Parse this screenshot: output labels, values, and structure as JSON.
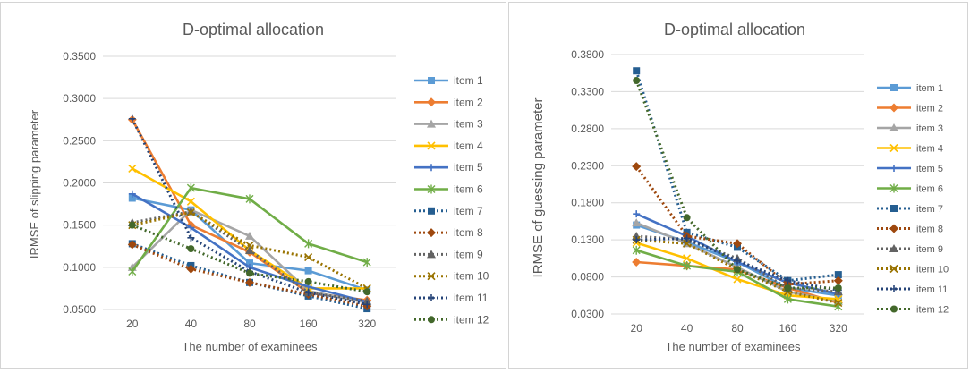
{
  "chart_data": [
    {
      "type": "line",
      "title": "D-optimal allocation",
      "xlabel": "The number of examinees",
      "ylabel": "IRMSE of slipping parameter",
      "categories": [
        "20",
        "40",
        "80",
        "160",
        "320"
      ],
      "ylim": [
        0.05,
        0.35
      ],
      "yticks": [
        "0.0500",
        "0.1000",
        "0.1500",
        "0.2000",
        "0.2500",
        "0.3000",
        "0.3500"
      ],
      "grid": true,
      "legend": "right",
      "series": [
        {
          "name": "item 1",
          "color": "#5B9BD5",
          "dash": "solid",
          "marker": "square",
          "values": [
            0.182,
            0.168,
            0.105,
            0.096,
            0.073
          ]
        },
        {
          "name": "item 2",
          "color": "#ED7D31",
          "dash": "solid",
          "marker": "diamond",
          "values": [
            0.275,
            0.15,
            0.118,
            0.07,
            0.061
          ]
        },
        {
          "name": "item 3",
          "color": "#A5A5A5",
          "dash": "solid",
          "marker": "triangle",
          "values": [
            0.1,
            0.168,
            0.137,
            0.072,
            0.058
          ]
        },
        {
          "name": "item 4",
          "color": "#FFC000",
          "dash": "solid",
          "marker": "x",
          "values": [
            0.217,
            0.178,
            0.12,
            0.075,
            0.075
          ]
        },
        {
          "name": "item 5",
          "color": "#4472C4",
          "dash": "solid",
          "marker": "plus",
          "values": [
            0.187,
            0.147,
            0.1,
            0.077,
            0.059
          ]
        },
        {
          "name": "item 6",
          "color": "#70AD47",
          "dash": "solid",
          "marker": "asterisk",
          "values": [
            0.095,
            0.194,
            0.181,
            0.128,
            0.106
          ]
        },
        {
          "name": "item 7",
          "color": "#255E91",
          "dash": "dotted",
          "marker": "square",
          "values": [
            0.128,
            0.102,
            0.082,
            0.066,
            0.051
          ]
        },
        {
          "name": "item 8",
          "color": "#9E480E",
          "dash": "dotted",
          "marker": "diamond",
          "values": [
            0.127,
            0.098,
            0.082,
            0.068,
            0.054
          ]
        },
        {
          "name": "item 9",
          "color": "#636363",
          "dash": "dotted",
          "marker": "triangle",
          "values": [
            0.153,
            0.166,
            0.12,
            0.07,
            0.06
          ]
        },
        {
          "name": "item 10",
          "color": "#997300",
          "dash": "dotted",
          "marker": "x",
          "values": [
            0.15,
            0.165,
            0.126,
            0.112,
            0.075
          ]
        },
        {
          "name": "item 11",
          "color": "#264478",
          "dash": "dotted",
          "marker": "plus",
          "values": [
            0.276,
            0.135,
            0.095,
            0.07,
            0.056
          ]
        },
        {
          "name": "item 12",
          "color": "#43682B",
          "dash": "dotted",
          "marker": "circle",
          "values": [
            0.15,
            0.122,
            0.093,
            0.083,
            0.071
          ]
        }
      ]
    },
    {
      "type": "line",
      "title": "D-optimal allocation",
      "xlabel": "The number of examinees",
      "ylabel": "IRMSE of guessing parameter",
      "categories": [
        "20",
        "40",
        "80",
        "160",
        "320"
      ],
      "ylim": [
        0.03,
        0.38
      ],
      "yticks": [
        "0.0300",
        "0.0800",
        "0.1300",
        "0.1800",
        "0.2300",
        "0.2800",
        "0.3300",
        "0.3800"
      ],
      "grid": true,
      "legend": "right",
      "series": [
        {
          "name": "item 1",
          "color": "#5B9BD5",
          "dash": "solid",
          "marker": "square",
          "values": [
            0.15,
            0.127,
            0.1,
            0.065,
            0.055
          ]
        },
        {
          "name": "item 2",
          "color": "#ED7D31",
          "dash": "solid",
          "marker": "diamond",
          "values": [
            0.1,
            0.095,
            0.09,
            0.065,
            0.045
          ]
        },
        {
          "name": "item 3",
          "color": "#A5A5A5",
          "dash": "solid",
          "marker": "triangle",
          "values": [
            0.153,
            0.125,
            0.093,
            0.06,
            0.047
          ]
        },
        {
          "name": "item 4",
          "color": "#FFC000",
          "dash": "solid",
          "marker": "x",
          "values": [
            0.126,
            0.105,
            0.077,
            0.055,
            0.05
          ]
        },
        {
          "name": "item 5",
          "color": "#4472C4",
          "dash": "solid",
          "marker": "plus",
          "values": [
            0.165,
            0.135,
            0.1,
            0.072,
            0.057
          ]
        },
        {
          "name": "item 6",
          "color": "#70AD47",
          "dash": "solid",
          "marker": "asterisk",
          "values": [
            0.116,
            0.095,
            0.087,
            0.05,
            0.04
          ]
        },
        {
          "name": "item 7",
          "color": "#255E91",
          "dash": "dotted",
          "marker": "square",
          "values": [
            0.358,
            0.14,
            0.12,
            0.075,
            0.083
          ]
        },
        {
          "name": "item 8",
          "color": "#9E480E",
          "dash": "dotted",
          "marker": "diamond",
          "values": [
            0.229,
            0.135,
            0.125,
            0.07,
            0.075
          ]
        },
        {
          "name": "item 9",
          "color": "#636363",
          "dash": "dotted",
          "marker": "triangle",
          "values": [
            0.135,
            0.13,
            0.105,
            0.065,
            0.06
          ]
        },
        {
          "name": "item 10",
          "color": "#997300",
          "dash": "dotted",
          "marker": "x",
          "values": [
            0.13,
            0.125,
            0.09,
            0.06,
            0.045
          ]
        },
        {
          "name": "item 11",
          "color": "#264478",
          "dash": "dotted",
          "marker": "plus",
          "values": [
            0.13,
            0.132,
            0.102,
            0.075,
            0.062
          ]
        },
        {
          "name": "item 12",
          "color": "#43682B",
          "dash": "dotted",
          "marker": "circle",
          "values": [
            0.345,
            0.16,
            0.09,
            0.065,
            0.065
          ]
        }
      ]
    }
  ]
}
